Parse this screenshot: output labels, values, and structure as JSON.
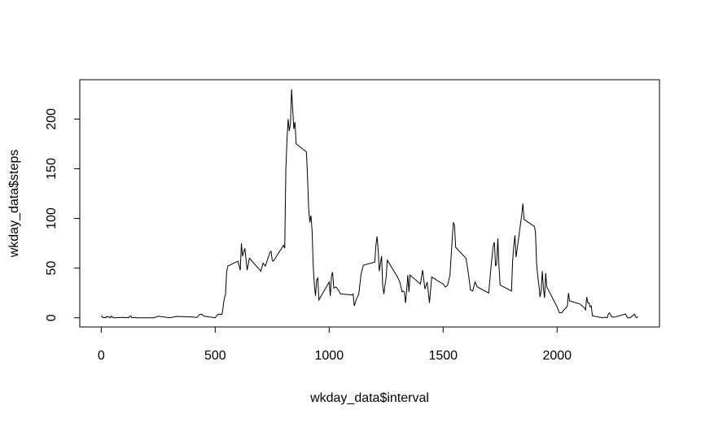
{
  "chart_data": {
    "type": "line",
    "xlabel": "wkday_data$interval",
    "ylabel": "wkday_data$steps",
    "color": "#000000",
    "x": [
      0,
      5,
      10,
      15,
      20,
      25,
      30,
      35,
      40,
      45,
      50,
      55,
      100,
      105,
      110,
      115,
      120,
      125,
      130,
      135,
      140,
      145,
      150,
      155,
      200,
      230,
      250,
      300,
      330,
      400,
      420,
      430,
      440,
      450,
      500,
      510,
      520,
      530,
      540,
      545,
      550,
      555,
      600,
      610,
      615,
      620,
      630,
      640,
      650,
      700,
      710,
      720,
      730,
      740,
      745,
      750,
      755,
      800,
      805,
      810,
      815,
      820,
      825,
      830,
      835,
      840,
      845,
      850,
      855,
      900,
      905,
      910,
      915,
      920,
      925,
      930,
      935,
      940,
      945,
      950,
      955,
      1000,
      1005,
      1010,
      1015,
      1020,
      1030,
      1040,
      1050,
      1100,
      1105,
      1110,
      1120,
      1130,
      1140,
      1150,
      1200,
      1205,
      1210,
      1215,
      1220,
      1225,
      1230,
      1235,
      1240,
      1245,
      1250,
      1255,
      1300,
      1310,
      1320,
      1325,
      1330,
      1335,
      1340,
      1345,
      1350,
      1355,
      1400,
      1410,
      1420,
      1430,
      1440,
      1450,
      1500,
      1510,
      1520,
      1530,
      1540,
      1545,
      1550,
      1555,
      1600,
      1610,
      1620,
      1630,
      1640,
      1650,
      1700,
      1710,
      1720,
      1725,
      1730,
      1735,
      1740,
      1745,
      1750,
      1800,
      1805,
      1810,
      1815,
      1820,
      1830,
      1845,
      1850,
      1855,
      1900,
      1905,
      1910,
      1915,
      1920,
      1925,
      1930,
      1935,
      1940,
      1945,
      1950,
      1955,
      2000,
      2010,
      2020,
      2030,
      2040,
      2045,
      2050,
      2055,
      2100,
      2110,
      2120,
      2125,
      2130,
      2135,
      2140,
      2145,
      2150,
      2155,
      2200,
      2210,
      2220,
      2225,
      2230,
      2240,
      2250,
      2300,
      2310,
      2320,
      2330,
      2340,
      2345,
      2350,
      2355
    ],
    "values": [
      2.3,
      0.5,
      0.2,
      0.2,
      0.1,
      1.6,
      0.6,
      1.1,
      0,
      1.8,
      0.4,
      0,
      0.4,
      0,
      0.2,
      0.4,
      0,
      1.4,
      2,
      0,
      0.2,
      0.3,
      0.4,
      0,
      0,
      0,
      1.6,
      0,
      1.4,
      0.8,
      0.3,
      3,
      3.7,
      1.7,
      0,
      3.2,
      3.6,
      3.5,
      20,
      23,
      46,
      52,
      57,
      48,
      75,
      62,
      70,
      48,
      60,
      47,
      55,
      52,
      59,
      66,
      67,
      58,
      57,
      73,
      70,
      150,
      180,
      200,
      188,
      195,
      230,
      210,
      190,
      197,
      175,
      167,
      142,
      110,
      96,
      103,
      88,
      52,
      33,
      22,
      38,
      40,
      18,
      36,
      22,
      42,
      46,
      30,
      31,
      28,
      24,
      23,
      24,
      12,
      19,
      24,
      44,
      53,
      56,
      73,
      82,
      68,
      47,
      55,
      62,
      32,
      24,
      33,
      41,
      58,
      41,
      36,
      26,
      27,
      26,
      15,
      28,
      43,
      26,
      43,
      34,
      48,
      29,
      36,
      15,
      41,
      34,
      31,
      33,
      43,
      80,
      96,
      93,
      71,
      60,
      46,
      28,
      27,
      36,
      31,
      25,
      51,
      73,
      76,
      52,
      55,
      80,
      52,
      33,
      27,
      58,
      72,
      83,
      61,
      78,
      104,
      115,
      99,
      92,
      87,
      55,
      42,
      33,
      21,
      27,
      47,
      30,
      20,
      45,
      31,
      11,
      5,
      5,
      8,
      10,
      12,
      25,
      17,
      14,
      12,
      10,
      8,
      21,
      15,
      15,
      11,
      12,
      2,
      0,
      0.6,
      0,
      4,
      5,
      0.9,
      0.6,
      3.8,
      0,
      0,
      1.8,
      3.6,
      0.8,
      0.3,
      1.1
    ],
    "xlim": [
      -94.2,
      2449.2
    ],
    "ylim": [
      -9.2,
      239.6
    ],
    "xticks": [
      0,
      500,
      1000,
      1500,
      2000
    ],
    "yticks": [
      0,
      50,
      100,
      150,
      200
    ]
  }
}
